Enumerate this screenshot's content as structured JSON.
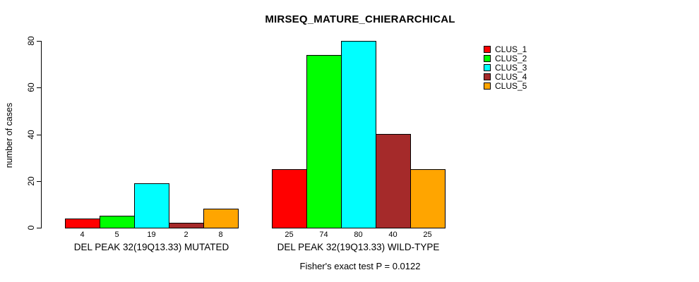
{
  "page": {
    "background": "#ffffff",
    "text_color": "#000000"
  },
  "chart_data": {
    "type": "bar",
    "title": "MIRSEQ_MATURE_CHIERARCHICAL",
    "ylabel": "number of cases",
    "xlabel": "",
    "ylim": [
      0,
      80
    ],
    "yticks": [
      0,
      20,
      40,
      60,
      80
    ],
    "grid": false,
    "legend_position": "top-right",
    "categories": [
      "DEL PEAK 32(19Q13.33) MUTATED",
      "DEL PEAK 32(19Q13.33) WILD-TYPE"
    ],
    "series": [
      {
        "name": "CLUS_1",
        "color": "#FF0000",
        "values": [
          4,
          25
        ]
      },
      {
        "name": "CLUS_2",
        "color": "#00FF00",
        "values": [
          5,
          74
        ]
      },
      {
        "name": "CLUS_3",
        "color": "#00FFFF",
        "values": [
          19,
          80
        ]
      },
      {
        "name": "CLUS_4",
        "color": "#A52A2A",
        "values": [
          2,
          40
        ]
      },
      {
        "name": "CLUS_5",
        "color": "#FFA500",
        "values": [
          8,
          25
        ]
      }
    ],
    "annotation": "Fisher's exact test P = 0.0122",
    "axis_color": "#000000",
    "bar_border_color": "#000000"
  }
}
